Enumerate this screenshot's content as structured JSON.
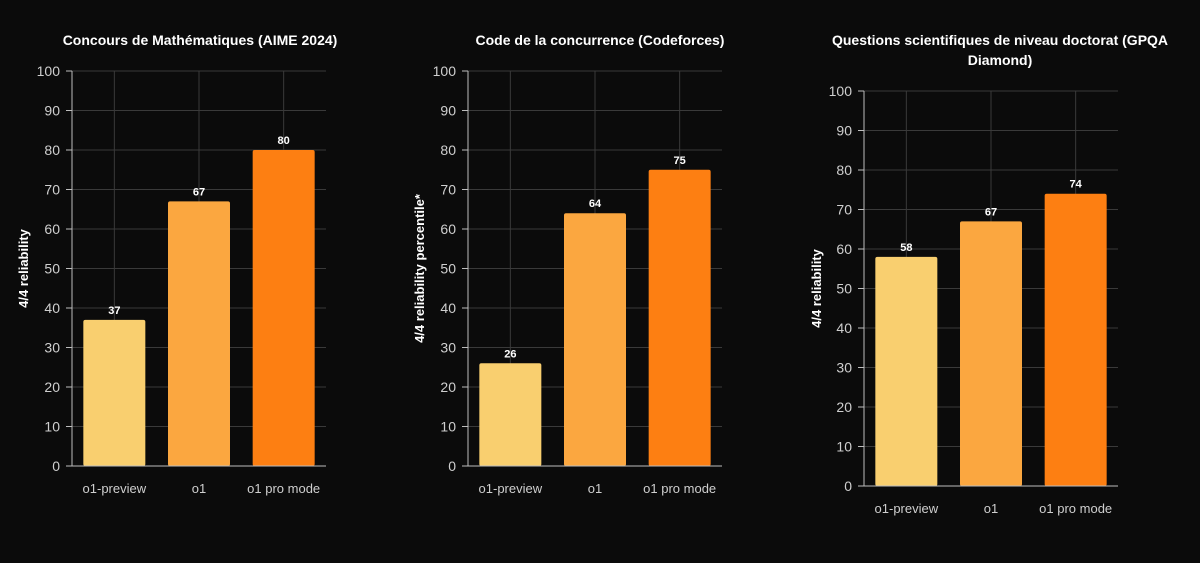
{
  "colors": {
    "background": "#0b0b0b",
    "grid": "#3a3a3a",
    "axis": "#bdbdbd",
    "tick_text": "#cfcfcf",
    "bars": [
      "#f9cf6f",
      "#fba740",
      "#fd7f12"
    ]
  },
  "chart_data": [
    {
      "type": "bar",
      "title": "Concours de Mathématiques (AIME 2024)",
      "categories": [
        "o1-preview",
        "o1",
        "o1 pro mode"
      ],
      "values": [
        37,
        67,
        80
      ],
      "data_labels": [
        "37",
        "67",
        "80"
      ],
      "xlabel": "",
      "ylabel": "4/4 reliability",
      "ylim": [
        0,
        100
      ],
      "yticks": [
        "0",
        "10",
        "20",
        "30",
        "40",
        "50",
        "60",
        "70",
        "80",
        "90",
        "100"
      ],
      "grid": true
    },
    {
      "type": "bar",
      "title": "Code de la concurrence (Codeforces)",
      "categories": [
        "o1-preview",
        "o1",
        "o1 pro mode"
      ],
      "values": [
        26,
        64,
        75
      ],
      "data_labels": [
        "26",
        "64",
        "75"
      ],
      "xlabel": "",
      "ylabel": "4/4 reliability percentile*",
      "ylim": [
        0,
        100
      ],
      "yticks": [
        "0",
        "10",
        "20",
        "30",
        "40",
        "50",
        "60",
        "70",
        "80",
        "90",
        "100"
      ],
      "grid": true
    },
    {
      "type": "bar",
      "title": "Questions scientifiques de niveau doctorat (GPQA Diamond)",
      "title_lines": [
        "Questions scientifiques de niveau doctorat (GPQA",
        "Diamond)"
      ],
      "categories": [
        "o1-preview",
        "o1",
        "o1 pro mode"
      ],
      "values": [
        58,
        67,
        74
      ],
      "data_labels": [
        "58",
        "67",
        "74"
      ],
      "xlabel": "",
      "ylabel": "4/4 reliability",
      "ylim": [
        0,
        100
      ],
      "yticks": [
        "0",
        "10",
        "20",
        "30",
        "40",
        "50",
        "60",
        "70",
        "80",
        "90",
        "100"
      ],
      "grid": true
    }
  ]
}
